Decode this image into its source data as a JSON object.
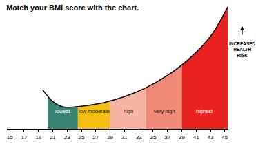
{
  "chart_data": {
    "type": "area",
    "title": "Match your BMI score with the chart.",
    "annotation": "INCREASED HEALTH RISK",
    "x": [
      19.6,
      21,
      22.5,
      25,
      28,
      31,
      34,
      37,
      40,
      43,
      45.4
    ],
    "values": [
      57,
      40,
      32,
      33,
      38,
      47,
      60,
      78,
      102,
      135,
      178
    ],
    "color": "#000000",
    "xlim": [
      14.6,
      45.5
    ],
    "xticks": [
      15,
      17,
      19,
      21,
      23,
      25,
      27,
      29,
      31,
      33,
      35,
      37,
      39,
      41,
      43,
      45
    ],
    "ylim": [
      0,
      180
    ],
    "tick_labels": "x",
    "grid": false,
    "bands": [
      {
        "label": "lowest",
        "from": 20.3,
        "to": 24.5,
        "color": "#3b8474"
      },
      {
        "label": "low moderate",
        "from": 24.5,
        "to": 29,
        "color": "#f5bf12"
      },
      {
        "label": "high",
        "from": 29,
        "to": 34,
        "color": "#f7b4a2"
      },
      {
        "label": "very high",
        "from": 34,
        "to": 39,
        "color": "#f08a78"
      },
      {
        "label": "highest",
        "from": 39,
        "to": 45.4,
        "color": "#e8231f"
      }
    ]
  }
}
